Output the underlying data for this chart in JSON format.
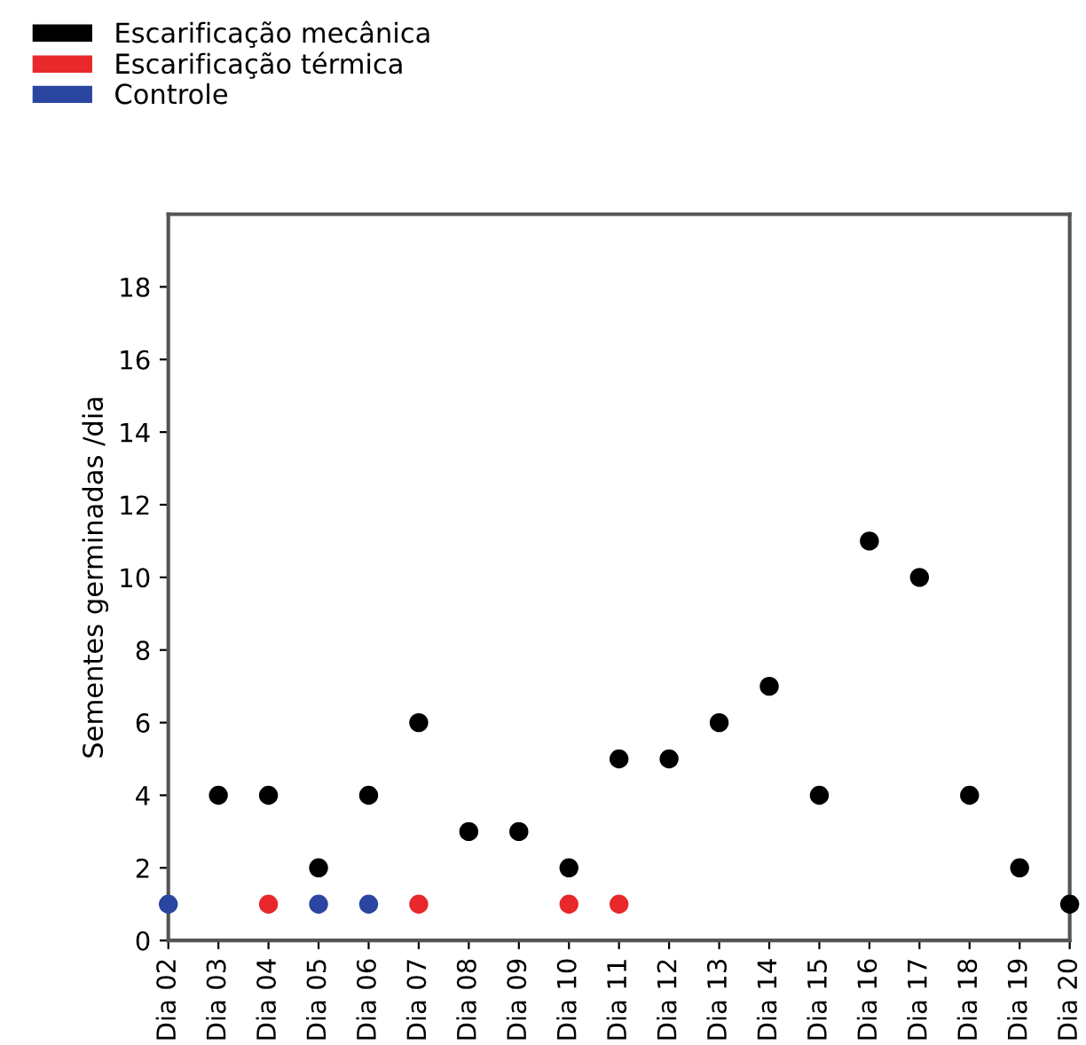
{
  "chart_data": {
    "type": "scatter",
    "ylabel": "Sementes germinadas /dia",
    "categories": [
      "Dia 02",
      "Dia 03",
      "Dia 04",
      "Dia 05",
      "Dia 06",
      "Dia 07",
      "Dia 08",
      "Dia 09",
      "Dia 10",
      "Dia 11",
      "Dia 12",
      "Dia 13",
      "Dia 14",
      "Dia 15",
      "Dia 16",
      "Dia 17",
      "Dia 18",
      "Dia 19",
      "Dia 20"
    ],
    "series": [
      {
        "name": "Escarificação mecânica",
        "color": "#000000",
        "values": [
          null,
          4,
          4,
          2,
          4,
          6,
          3,
          3,
          2,
          5,
          5,
          6,
          7,
          4,
          11,
          10,
          4,
          2,
          1
        ]
      },
      {
        "name": "Escarificação térmica",
        "color": "#e8282b",
        "values": [
          null,
          null,
          1,
          null,
          null,
          1,
          null,
          null,
          1,
          1,
          null,
          null,
          null,
          null,
          null,
          null,
          null,
          null,
          null
        ]
      },
      {
        "name": "Controle",
        "color": "#2a46a0",
        "values": [
          1,
          null,
          null,
          1,
          1,
          null,
          null,
          null,
          null,
          null,
          null,
          null,
          null,
          null,
          null,
          null,
          null,
          null,
          null
        ]
      }
    ],
    "ylim": [
      0,
      20
    ],
    "yticks": [
      0,
      2,
      4,
      6,
      8,
      10,
      12,
      14,
      16,
      18
    ],
    "grid": false,
    "legend": "top left",
    "marker": "circle"
  }
}
